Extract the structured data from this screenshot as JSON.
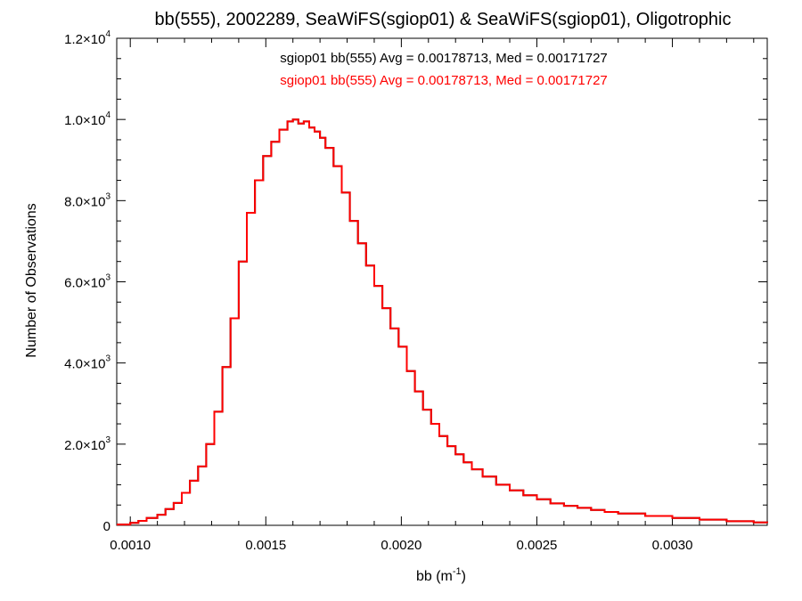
{
  "chart_data": {
    "type": "line",
    "title": "bb(555), 2002289, SeaWiFS(sgiop01) & SeaWiFS(sgiop01), Oligotrophic",
    "annotations": [
      {
        "text": "sgiop01 bb(555) Avg = 0.00178713, Med = 0.00171727",
        "color": "#000000"
      },
      {
        "text": "sgiop01 bb(555) Avg = 0.00178713, Med = 0.00171727",
        "color": "#ff0000"
      }
    ],
    "xlabel": "bb (m",
    "xlabel_sup": "-1",
    "xlabel_tail": ")",
    "ylabel": "Number of Observations",
    "xlim": [
      0.00095,
      0.00335
    ],
    "ylim": [
      0,
      12000
    ],
    "x_ticks": [
      {
        "value": 0.001,
        "label": "0.0010"
      },
      {
        "value": 0.0015,
        "label": "0.0015"
      },
      {
        "value": 0.002,
        "label": "0.0020"
      },
      {
        "value": 0.0025,
        "label": "0.0025"
      },
      {
        "value": 0.003,
        "label": "0.0030"
      }
    ],
    "y_ticks": [
      {
        "value": 0,
        "mant": "0",
        "exp": ""
      },
      {
        "value": 2000,
        "mant": "2.0×10",
        "exp": "3"
      },
      {
        "value": 4000,
        "mant": "4.0×10",
        "exp": "3"
      },
      {
        "value": 6000,
        "mant": "6.0×10",
        "exp": "3"
      },
      {
        "value": 8000,
        "mant": "8.0×10",
        "exp": "3"
      },
      {
        "value": 10000,
        "mant": "1.0×10",
        "exp": "4"
      },
      {
        "value": 12000,
        "mant": "1.2×10",
        "exp": "4"
      }
    ],
    "grid": false,
    "series": [
      {
        "color": "#000000",
        "x": [
          0.00095,
          0.001,
          0.00103,
          0.00106,
          0.0011,
          0.00113,
          0.00116,
          0.00119,
          0.00122,
          0.00125,
          0.00128,
          0.00131,
          0.00134,
          0.00137,
          0.0014,
          0.00143,
          0.00146,
          0.00149,
          0.00152,
          0.00155,
          0.00158,
          0.0016,
          0.00162,
          0.00164,
          0.00166,
          0.00168,
          0.0017,
          0.00172,
          0.00175,
          0.00178,
          0.00181,
          0.00184,
          0.00187,
          0.0019,
          0.00193,
          0.00196,
          0.00199,
          0.00202,
          0.00205,
          0.00208,
          0.00211,
          0.00214,
          0.00217,
          0.0022,
          0.00223,
          0.00226,
          0.0023,
          0.00235,
          0.0024,
          0.00245,
          0.0025,
          0.00255,
          0.0026,
          0.00265,
          0.0027,
          0.00275,
          0.0028,
          0.0029,
          0.003,
          0.0031,
          0.0032,
          0.0033,
          0.00335
        ],
        "y": [
          20,
          60,
          110,
          180,
          260,
          400,
          550,
          800,
          1100,
          1450,
          2000,
          2800,
          3900,
          5100,
          6500,
          7700,
          8500,
          9100,
          9450,
          9750,
          9950,
          10000,
          9900,
          9950,
          9800,
          9700,
          9550,
          9300,
          8850,
          8200,
          7500,
          6950,
          6400,
          5900,
          5350,
          4850,
          4400,
          3800,
          3300,
          2850,
          2500,
          2200,
          1950,
          1750,
          1550,
          1380,
          1200,
          1000,
          860,
          740,
          640,
          540,
          480,
          430,
          380,
          330,
          290,
          230,
          180,
          140,
          100,
          70,
          60
        ]
      },
      {
        "color": "#ff0000",
        "x": [
          0.00095,
          0.001,
          0.00103,
          0.00106,
          0.0011,
          0.00113,
          0.00116,
          0.00119,
          0.00122,
          0.00125,
          0.00128,
          0.00131,
          0.00134,
          0.00137,
          0.0014,
          0.00143,
          0.00146,
          0.00149,
          0.00152,
          0.00155,
          0.00158,
          0.0016,
          0.00162,
          0.00164,
          0.00166,
          0.00168,
          0.0017,
          0.00172,
          0.00175,
          0.00178,
          0.00181,
          0.00184,
          0.00187,
          0.0019,
          0.00193,
          0.00196,
          0.00199,
          0.00202,
          0.00205,
          0.00208,
          0.00211,
          0.00214,
          0.00217,
          0.0022,
          0.00223,
          0.00226,
          0.0023,
          0.00235,
          0.0024,
          0.00245,
          0.0025,
          0.00255,
          0.0026,
          0.00265,
          0.0027,
          0.00275,
          0.0028,
          0.0029,
          0.003,
          0.0031,
          0.0032,
          0.0033,
          0.00335
        ],
        "y": [
          20,
          60,
          110,
          180,
          260,
          400,
          550,
          800,
          1100,
          1450,
          2000,
          2800,
          3900,
          5100,
          6500,
          7700,
          8500,
          9100,
          9450,
          9750,
          9950,
          10000,
          9900,
          9950,
          9800,
          9700,
          9550,
          9300,
          8850,
          8200,
          7500,
          6950,
          6400,
          5900,
          5350,
          4850,
          4400,
          3800,
          3300,
          2850,
          2500,
          2200,
          1950,
          1750,
          1550,
          1380,
          1200,
          1000,
          860,
          740,
          640,
          540,
          480,
          430,
          380,
          330,
          290,
          230,
          180,
          140,
          100,
          70,
          60
        ]
      }
    ]
  }
}
